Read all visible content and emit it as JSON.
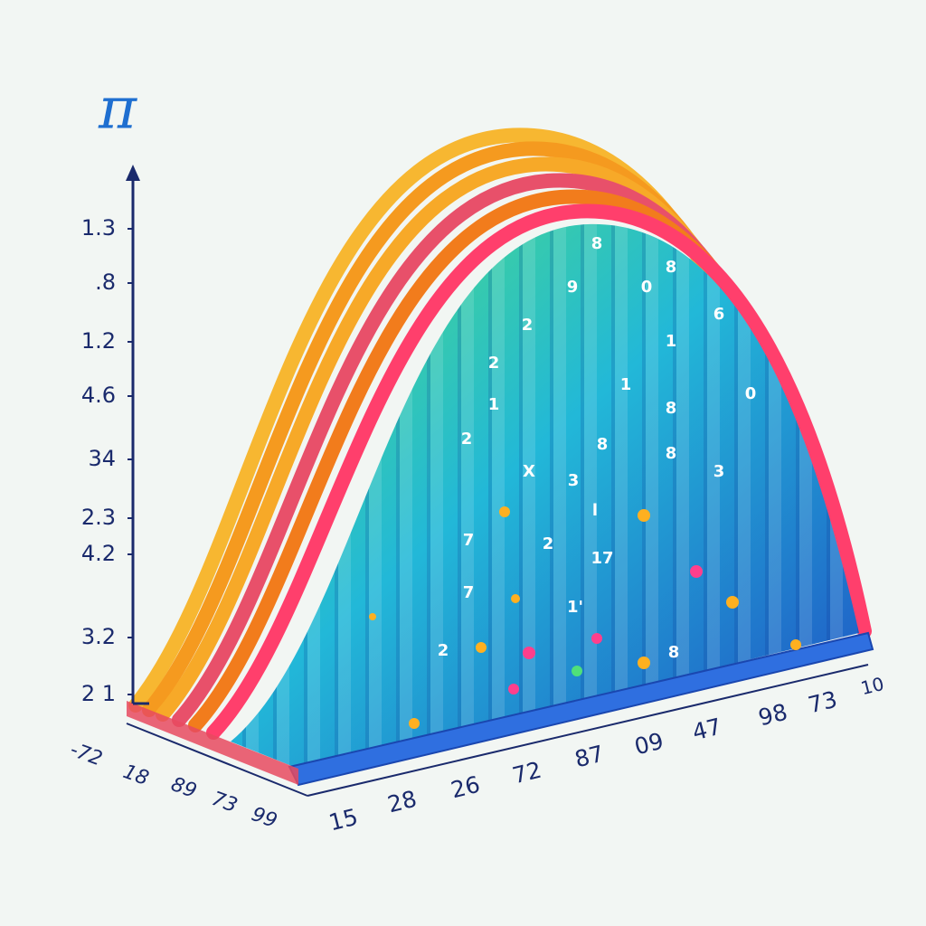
{
  "symbol": "π",
  "y_axis_labels": [
    "1.3",
    ".8",
    "1.2",
    "4.6",
    "34",
    "2.3",
    "4.2",
    "3.2",
    "2 1"
  ],
  "front_axis_labels": [
    "15",
    "28",
    "26",
    "72",
    "87",
    "09",
    "47",
    "98",
    "73",
    "10"
  ],
  "depth_axis_labels": [
    "-72",
    "18",
    "89",
    "73",
    "99"
  ],
  "floating_digits": [
    "8",
    "9",
    "0",
    "8",
    "2",
    "6",
    "2",
    "1",
    "1",
    "1",
    "8",
    "0",
    "2",
    "8",
    "8",
    "X",
    "3",
    "3",
    "l",
    "7",
    "2",
    "17",
    "7",
    "1'",
    "2",
    "8"
  ]
}
